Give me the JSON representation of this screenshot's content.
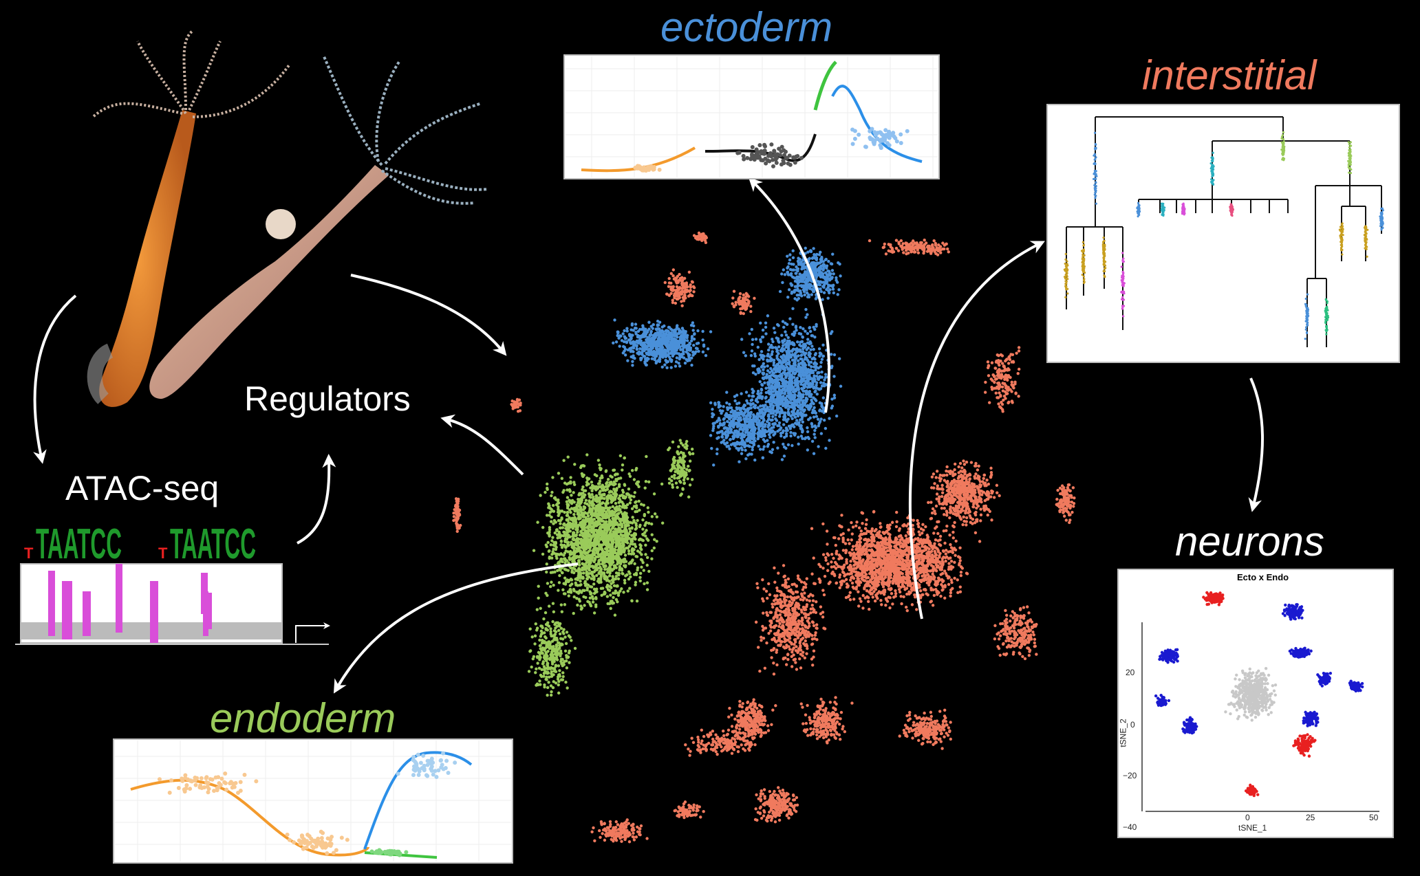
{
  "labels": {
    "ectoderm": "ectoderm",
    "interstitial": "interstitial",
    "neurons": "neurons",
    "endoderm": "endoderm",
    "regulators": "Regulators",
    "atac": "ATAC-seq",
    "motif": "TAATCC",
    "motif_prefix": "T",
    "neurons_plot_title": "Ecto x Endo",
    "neurons_xlabel": "tSNE_1",
    "neurons_ylabel": "tSNE_2",
    "neurons_yticks": [
      "20",
      "0",
      "−20",
      "−40"
    ],
    "neurons_xticks": [
      "0",
      "25",
      "50"
    ]
  },
  "colors": {
    "ectoderm": "#4a90d9",
    "interstitial": "#f07a5e",
    "endoderm": "#9acb5a",
    "orange": "#f39a2c",
    "green": "#3fc43f",
    "magenta": "#d94ed9",
    "neuron_red": "#e82020",
    "neuron_blue": "#1a1ad0"
  },
  "icons": [
    "hydra-photo",
    "arrow-icon"
  ]
}
